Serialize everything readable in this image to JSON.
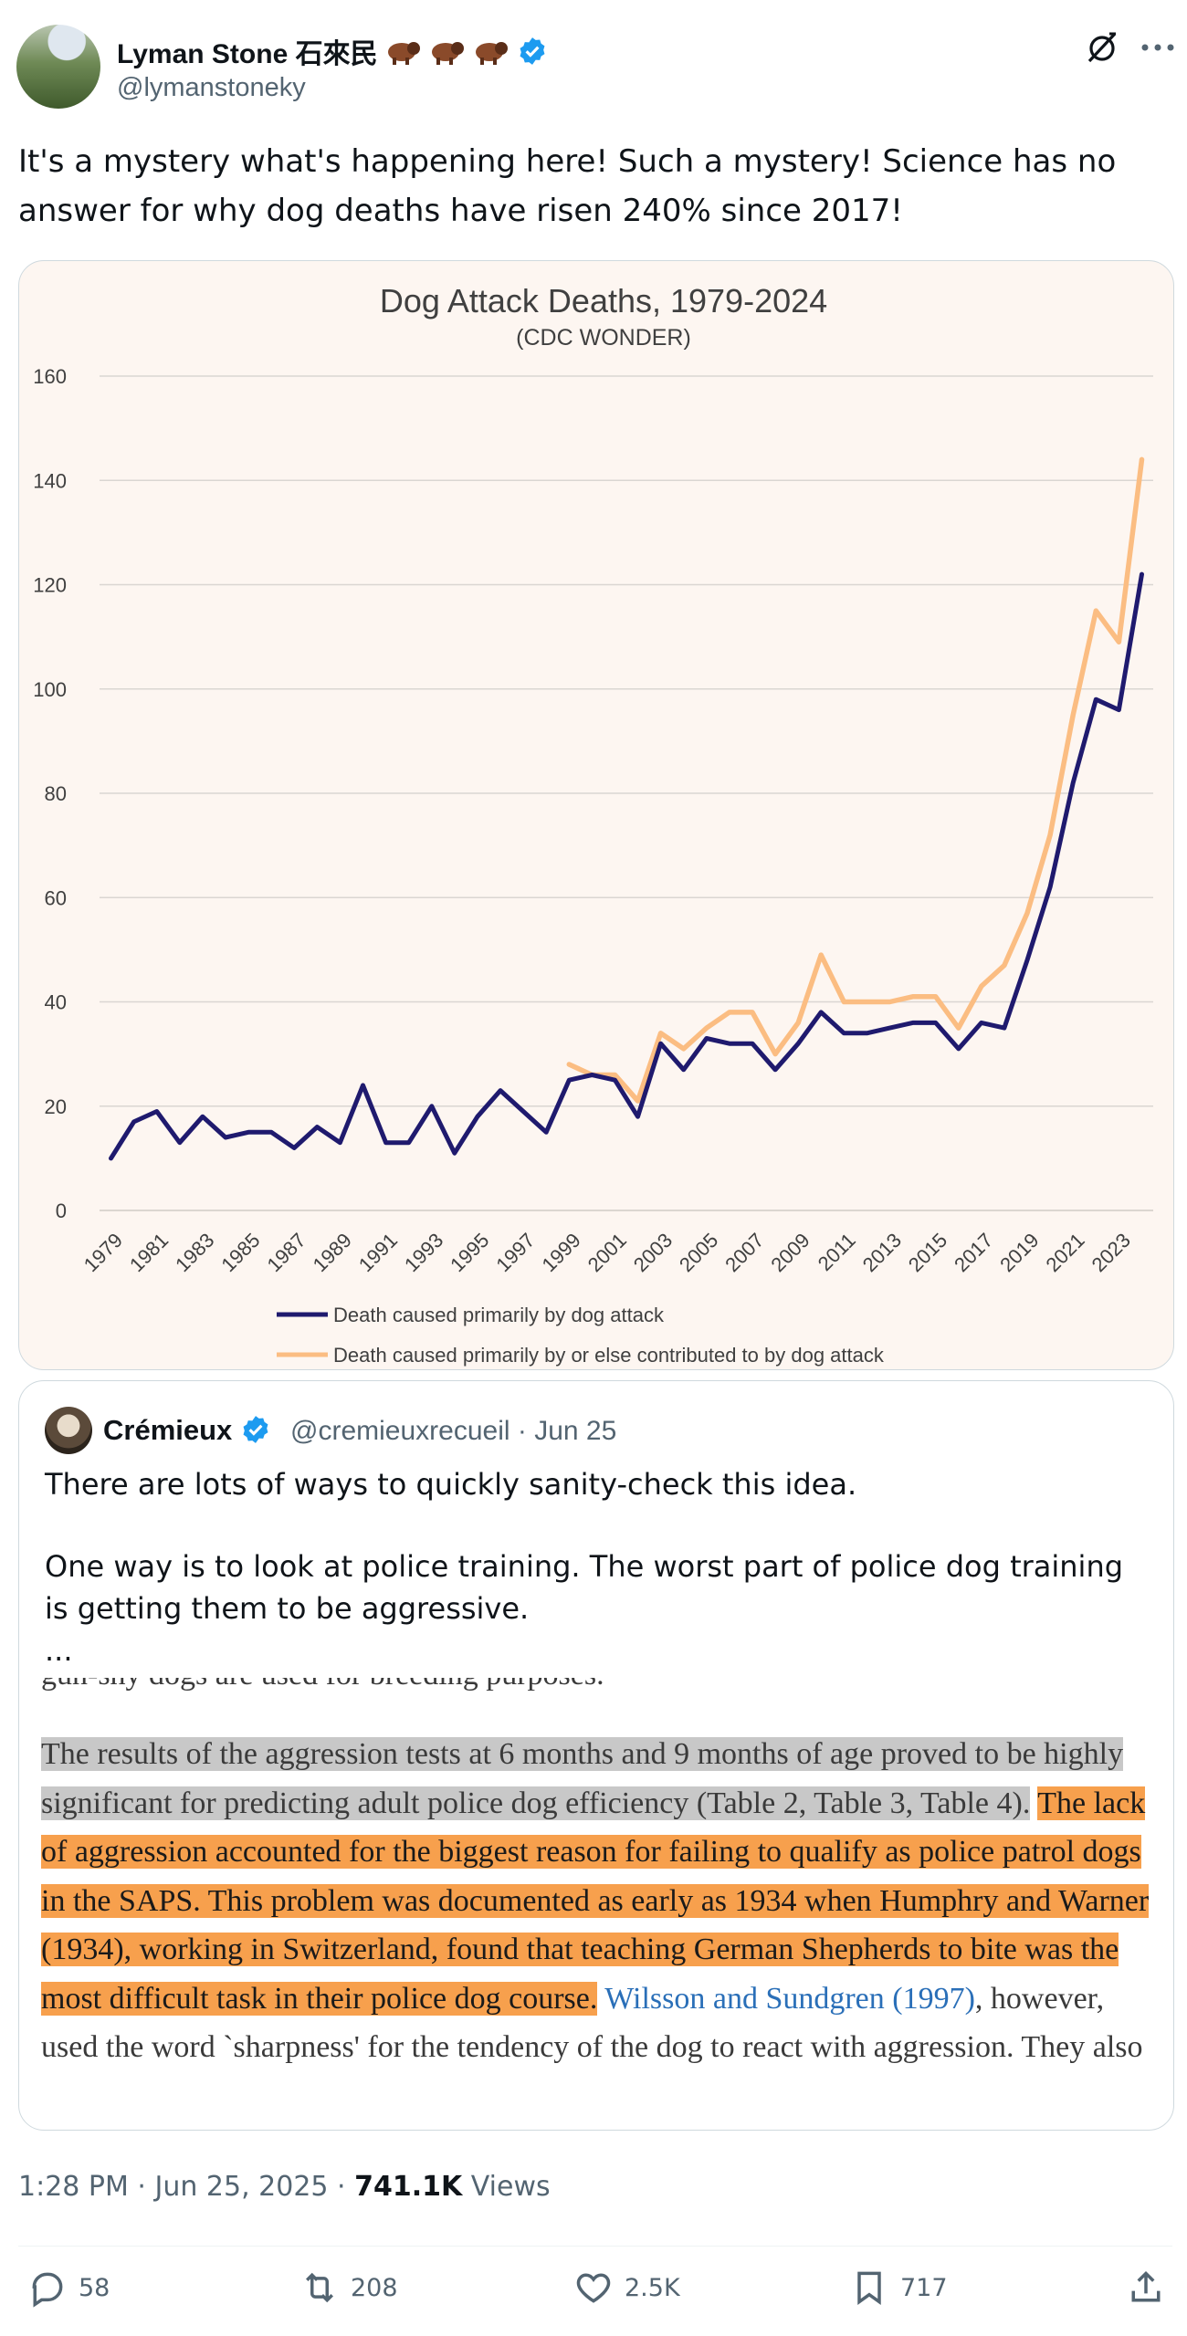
{
  "author": {
    "name": "Lyman Stone 石來民",
    "handle": "@lymanstoneky",
    "emoji_badges": [
      "bison",
      "bison",
      "bison"
    ],
    "verified": true
  },
  "tweet": {
    "text": "It's a mystery what's happening here! Such a mystery! Science has no answer for why dog deaths have risen 240% since 2017!"
  },
  "chart_data": {
    "type": "line",
    "title": "Dog Attack Deaths, 1979-2024",
    "subtitle": "(CDC WONDER)",
    "xlabel": "",
    "ylabel": "",
    "ylim": [
      0,
      160
    ],
    "yticks": [
      0,
      20,
      40,
      60,
      80,
      100,
      120,
      140,
      160
    ],
    "x": [
      1979,
      1980,
      1981,
      1982,
      1983,
      1984,
      1985,
      1986,
      1987,
      1988,
      1989,
      1990,
      1991,
      1992,
      1993,
      1994,
      1995,
      1996,
      1997,
      1998,
      1999,
      2000,
      2001,
      2002,
      2003,
      2004,
      2005,
      2006,
      2007,
      2008,
      2009,
      2010,
      2011,
      2012,
      2013,
      2014,
      2015,
      2016,
      2017,
      2018,
      2019,
      2020,
      2021,
      2022,
      2023,
      2024
    ],
    "xtick_labels": [
      "1979",
      "1981",
      "1983",
      "1985",
      "1987",
      "1989",
      "1991",
      "1993",
      "1995",
      "1997",
      "1999",
      "2001",
      "2003",
      "2005",
      "2007",
      "2009",
      "2011",
      "2013",
      "2015",
      "2017",
      "2019",
      "2021",
      "2023"
    ],
    "series": [
      {
        "name": "Death caused primarily by dog attack",
        "color": "#1f1a6e",
        "values": [
          10,
          17,
          19,
          13,
          18,
          14,
          15,
          15,
          12,
          16,
          13,
          24,
          13,
          13,
          20,
          11,
          18,
          23,
          19,
          15,
          25,
          26,
          25,
          18,
          32,
          27,
          33,
          32,
          32,
          27,
          32,
          38,
          34,
          34,
          35,
          36,
          36,
          31,
          36,
          35,
          48,
          62,
          82,
          98,
          96,
          122
        ]
      },
      {
        "name": "Death caused primarily by or else contributed to by dog attack",
        "color": "#fbbd82",
        "values": [
          null,
          null,
          null,
          null,
          null,
          null,
          null,
          null,
          null,
          null,
          null,
          null,
          null,
          null,
          null,
          null,
          null,
          null,
          null,
          null,
          28,
          26,
          26,
          21,
          34,
          31,
          35,
          38,
          38,
          30,
          36,
          49,
          40,
          40,
          40,
          41,
          41,
          35,
          43,
          47,
          57,
          72,
          95,
          115,
          109,
          144
        ]
      }
    ],
    "legend_position": "bottom-center",
    "grid": true
  },
  "quote": {
    "author_name": "Crémieux",
    "author_handle": "@cremieuxrecueil",
    "date": "· Jun 25",
    "verified": true,
    "paragraph1": "There are lots of ways to quickly sanity-check this idea.",
    "paragraph2": "One way is to look at police training. The worst part of police dog training is getting them to be aggressive.",
    "ellipsis": "...",
    "excerpt": {
      "cut_line": "gun-shy dogs are used for breeding purposes.",
      "grey_highlight": "The results of the aggression tests at 6 months and 9 months of age proved to be highly significant for predicting adult police dog efficiency (Table 2, Table 3, Table 4).",
      "orange_highlight": "The lack of aggression accounted for the biggest reason for failing to qualify as police patrol dogs in the SAPS. This problem was documented as early as 1934 when Humphry and Warner (1934), working in Switzerland, found that teaching German Shepherds to bite was the most difficult task in their police dog course.",
      "citation": "Wilsson and Sundgren (1997)",
      "tail": ", however, used the word `sharpness' for the tendency of the dog to react with aggression. They also"
    }
  },
  "meta": {
    "time": "1:28 PM · Jun 25, 2025 · ",
    "views_count": "741.1K",
    "views_label": " Views"
  },
  "actions": {
    "replies": "58",
    "reposts": "208",
    "likes": "2.5K",
    "bookmarks": "717"
  }
}
